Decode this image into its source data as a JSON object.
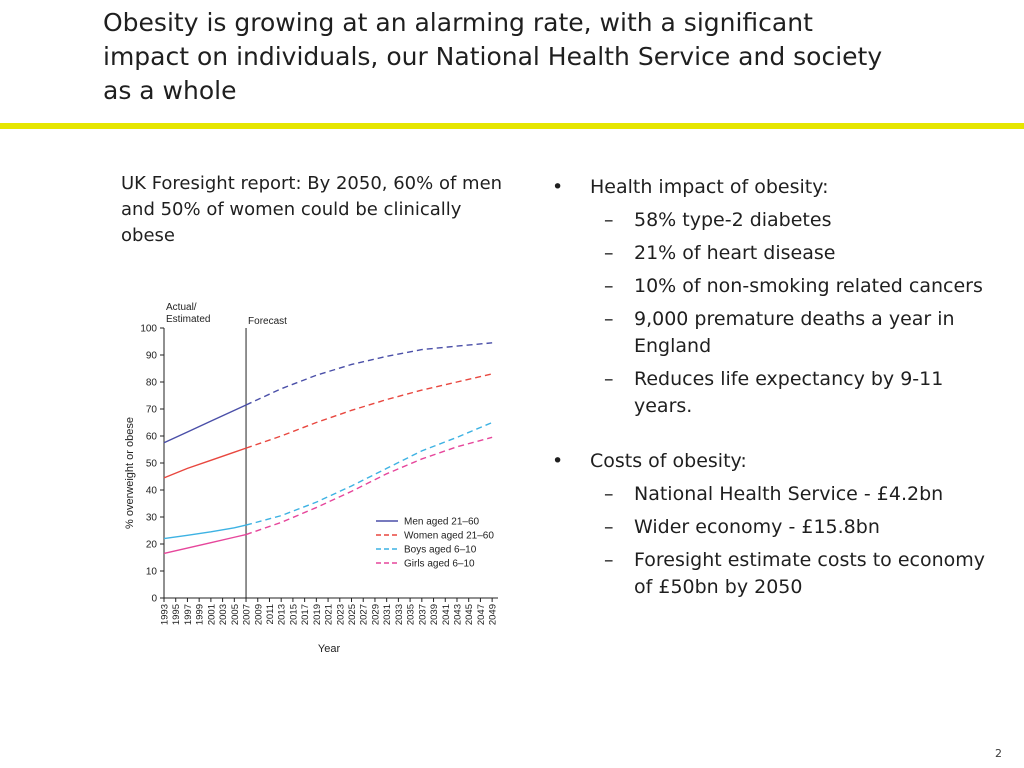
{
  "slide": {
    "title": "Obesity is growing at an alarming rate, with a significant impact on individuals, our National Health Service and society as a whole",
    "accent_color": "#e6e600",
    "page_number": "2"
  },
  "left": {
    "caption": "UK Foresight report: By 2050, 60% of men and 50%  of women could be clinically obese"
  },
  "right": {
    "groups": [
      {
        "heading": "Health impact of obesity:",
        "items": [
          "58% type-2 diabetes",
          "21% of heart disease",
          "10% of non-smoking related cancers",
          "9,000 premature deaths a year in England",
          "Reduces life expectancy by 9-11 years."
        ]
      },
      {
        "heading": "Costs of obesity:",
        "items": [
          "National Health Service - £4.2bn",
          "Wider economy - £15.8bn",
          "Foresight estimate costs to economy of £50bn by 2050"
        ]
      }
    ],
    "bullet_glyph": "•",
    "dash_glyph": "–"
  },
  "chart_data": {
    "type": "line",
    "xlabel": "Year",
    "ylabel": "% overweight or obese",
    "ylim": [
      0,
      100
    ],
    "yticks": [
      0,
      10,
      20,
      30,
      40,
      50,
      60,
      70,
      80,
      90,
      100
    ],
    "xlim": [
      1993,
      2050
    ],
    "xticks": [
      1993,
      1995,
      1997,
      1999,
      2001,
      2003,
      2005,
      2007,
      2009,
      2011,
      2013,
      2015,
      2017,
      2019,
      2021,
      2023,
      2025,
      2027,
      2029,
      2031,
      2033,
      2035,
      2037,
      2039,
      2041,
      2043,
      2045,
      2047,
      2049
    ],
    "annotations": {
      "actual": "Actual/\nEstimated",
      "forecast": "Forecast",
      "forecast_start": 2007
    },
    "series": [
      {
        "name": "Men aged 21–60",
        "color": "#4a4fa8",
        "actual": {
          "x": [
            1993,
            1997,
            2001,
            2005,
            2007
          ],
          "y": [
            57.5,
            61.5,
            65.5,
            69.5,
            71.5
          ]
        },
        "forecast": {
          "x": [
            2007,
            2013,
            2019,
            2025,
            2031,
            2037,
            2043,
            2049
          ],
          "y": [
            71.5,
            77.5,
            82.5,
            86.5,
            89.5,
            92,
            93.3,
            94.5
          ]
        }
      },
      {
        "name": "Women aged 21–60",
        "color": "#e8473f",
        "actual": {
          "x": [
            1993,
            1997,
            2001,
            2005,
            2007
          ],
          "y": [
            44.5,
            48,
            51,
            54,
            55.5
          ]
        },
        "forecast": {
          "x": [
            2007,
            2013,
            2019,
            2025,
            2031,
            2037,
            2043,
            2049
          ],
          "y": [
            55.5,
            60,
            65,
            69.5,
            73.5,
            77,
            80,
            83
          ]
        }
      },
      {
        "name": "Boys aged 6–10",
        "color": "#3db2e3",
        "actual": {
          "x": [
            1993,
            1997,
            2001,
            2005,
            2007
          ],
          "y": [
            22,
            23.2,
            24.5,
            26,
            27
          ]
        },
        "forecast": {
          "x": [
            2007,
            2013,
            2019,
            2025,
            2031,
            2037,
            2043,
            2049
          ],
          "y": [
            27,
            30.5,
            35.5,
            41.5,
            48,
            54.5,
            59.5,
            65
          ]
        }
      },
      {
        "name": "Girls aged 6–10",
        "color": "#e6469b",
        "actual": {
          "x": [
            1993,
            1997,
            2001,
            2005,
            2007
          ],
          "y": [
            16.5,
            18.5,
            20.5,
            22.5,
            23.5
          ]
        },
        "forecast": {
          "x": [
            2007,
            2013,
            2019,
            2025,
            2031,
            2037,
            2043,
            2049
          ],
          "y": [
            23.5,
            28,
            33.5,
            39.5,
            46,
            51.5,
            56,
            59.5
          ]
        }
      }
    ],
    "legend_position": "bottom-right"
  }
}
